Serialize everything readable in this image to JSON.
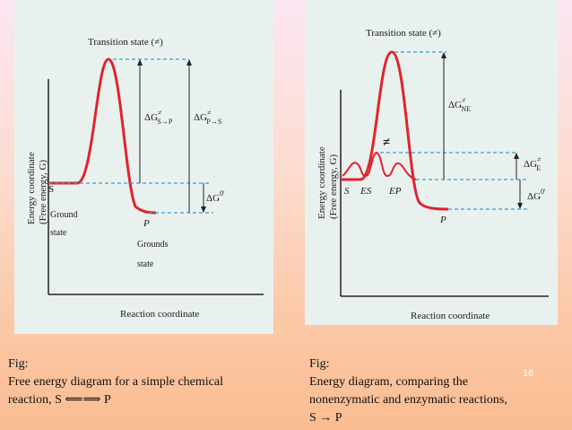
{
  "left_diagram": {
    "transition_label": "Transition state (≠)",
    "y_axis_label": "Energy coordinate",
    "y_axis_sub": "(Free energy, G)",
    "x_axis_label": "Reaction coordinate",
    "dg_label": "ΔG",
    "dg_sup": "≠",
    "dg_sub": "S→P",
    "dg_rev_label": "ΔG",
    "dg_rev_sup": "≠",
    "dg_rev_sub": "P→S",
    "dg0_label": "ΔG",
    "dg0_sup": "0'",
    "s_label": "S",
    "ground_label": "Ground",
    "state_label": "state",
    "p_label": "P",
    "grounds_label": "Grounds",
    "state2_label": "state"
  },
  "right_diagram": {
    "transition_label": "Transition state (≠)",
    "y_axis_label": "Energy coordinate",
    "y_axis_sub": "(Free energy, G)",
    "x_axis_label": "Reaction coordinate",
    "neq_label": "≠",
    "dg_ne_label": "ΔG",
    "dg_ne_sup": "≠",
    "dg_ne_sub": "NE",
    "dg_e_label": "ΔG",
    "dg_e_sup": "≠",
    "dg_e_sub": "E",
    "dg0_label": "ΔG",
    "dg0_sup": "0'",
    "s_label": "S",
    "es_label": "ES",
    "ep_label": "EP",
    "p_label": "P"
  },
  "captions": {
    "left_line1": "Fig:",
    "left_line2": "Free energy diagram for a simple chemical",
    "left_line3": "reaction, S",
    "left_line3_arrow": "⟸⟹",
    "left_line3_end": "P",
    "right_line1": "Fig:",
    "right_line2": "Energy diagram, comparing the",
    "right_line3": "nonenzymatic and enzymatic reactions,",
    "right_line4": "S → P"
  },
  "slide_number": "16",
  "colors": {
    "curve": "#e0242e",
    "dash": "#3a9bd8",
    "axis": "#222222"
  }
}
